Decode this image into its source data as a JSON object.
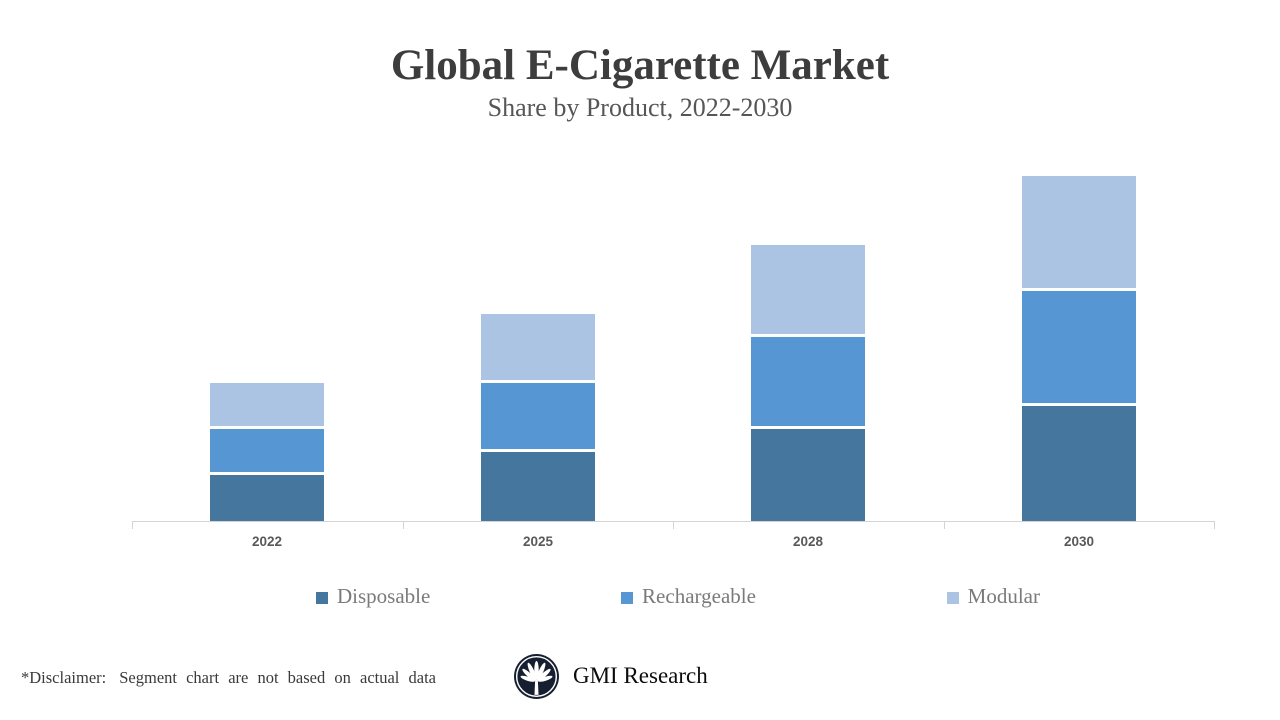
{
  "header": {
    "title": "Global E-Cigarette Market",
    "subtitle": "Share by Product, 2022-2030"
  },
  "chart_data": {
    "type": "bar",
    "stacked": true,
    "title": "Global E-Cigarette Market",
    "subtitle": "Share by Product, 2022-2030",
    "categories": [
      "2022",
      "2025",
      "2028",
      "2030"
    ],
    "series": [
      {
        "name": "Disposable",
        "color": "#44769e",
        "values": [
          1.0,
          1.5,
          2.0,
          2.5
        ]
      },
      {
        "name": "Rechargeable",
        "color": "#5697d3",
        "values": [
          1.0,
          1.5,
          2.0,
          2.5
        ]
      },
      {
        "name": "Modular",
        "color": "#abc4e3",
        "values": [
          1.0,
          1.5,
          2.0,
          2.5
        ]
      }
    ],
    "units": "relative share (illustrative, not actual data)",
    "xlabel": "",
    "ylabel": "",
    "grid": false,
    "y_axis_visible": false,
    "legend_position": "bottom",
    "axis_color": "#d4d4d4",
    "category_label_color": "#595959"
  },
  "footer": {
    "disclaimer_label": "*Disclaimer:",
    "disclaimer_text": "Segment chart are not based on actual data",
    "brand": "GMI Research"
  }
}
